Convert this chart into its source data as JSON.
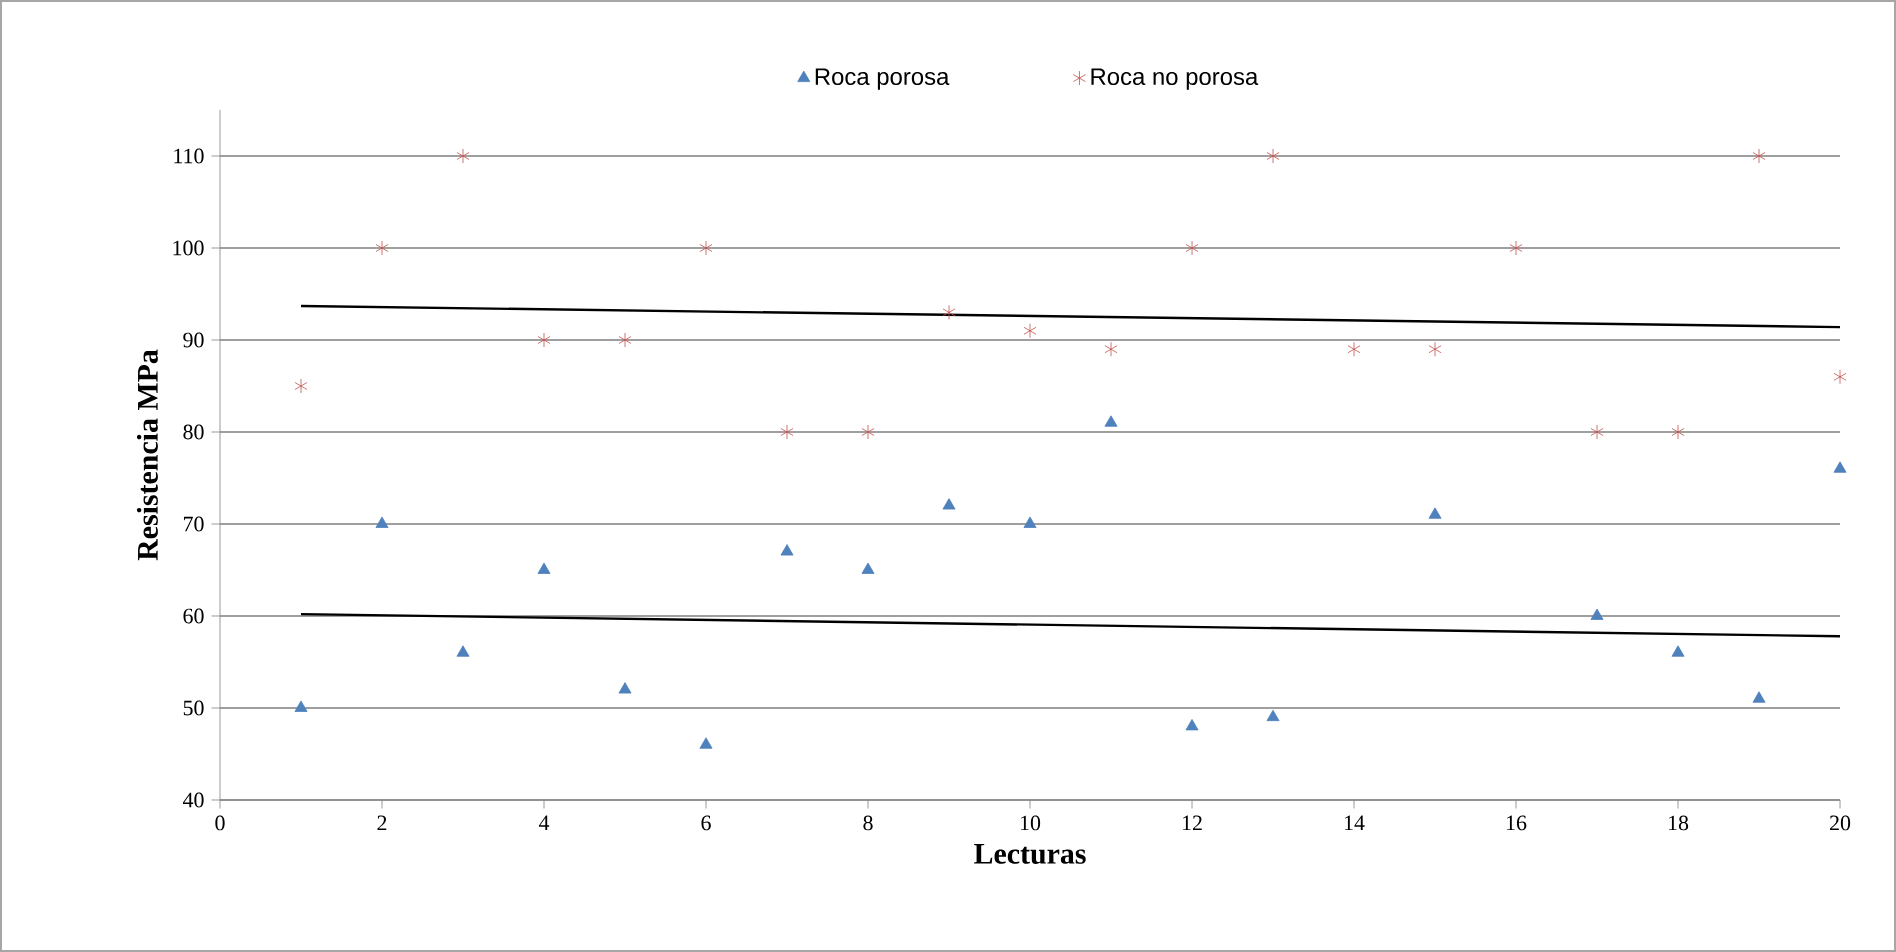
{
  "chart_data": {
    "type": "scatter",
    "xlabel": "Lecturas",
    "ylabel": "Resistencia  MPa",
    "xlim": [
      0,
      20
    ],
    "xticks": [
      0,
      2,
      4,
      6,
      8,
      10,
      12,
      14,
      16,
      18,
      20
    ],
    "ylim": [
      40,
      115
    ],
    "yticks": [
      40,
      50,
      60,
      70,
      80,
      90,
      100,
      110
    ],
    "grid": "y",
    "legend": "top",
    "series": [
      {
        "name": "Roca porosa",
        "color": "#4f81bd",
        "marker": "triangle",
        "x": [
          1,
          2,
          3,
          4,
          5,
          6,
          7,
          8,
          9,
          10,
          11,
          12,
          13,
          15,
          17,
          18,
          19,
          20
        ],
        "values": [
          50,
          70,
          56,
          65,
          52,
          46,
          67,
          65,
          72,
          70,
          81,
          48,
          49,
          71,
          60,
          56,
          51,
          76
        ]
      },
      {
        "name": "Roca no porosa",
        "color": "#c0504d",
        "marker": "cross",
        "x": [
          1,
          2,
          3,
          4,
          5,
          6,
          7,
          8,
          9,
          10,
          11,
          12,
          13,
          14,
          15,
          16,
          17,
          18,
          19,
          20
        ],
        "values": [
          85,
          100,
          110,
          90,
          90,
          100,
          80,
          80,
          93,
          91,
          89,
          100,
          110,
          89,
          89,
          100,
          80,
          80,
          110,
          86
        ]
      },
      {
        "type": "line",
        "color": "#000000",
        "marker": "none",
        "x": [
          1,
          20
        ],
        "values": [
          93.7,
          91.4
        ]
      },
      {
        "type": "line",
        "color": "#000000",
        "marker": "none",
        "x": [
          1,
          20
        ],
        "values": [
          60.2,
          57.8
        ]
      }
    ]
  }
}
